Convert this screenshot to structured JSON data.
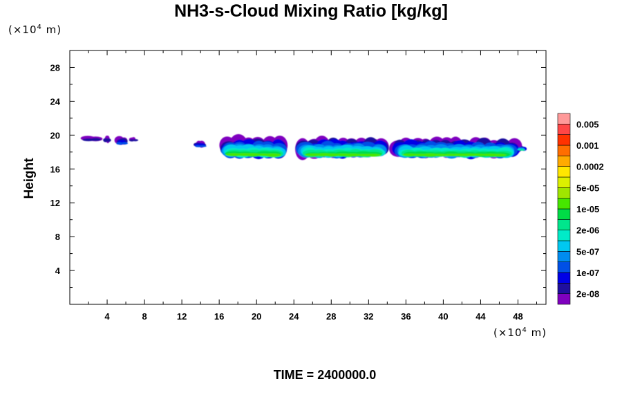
{
  "chart_data": {
    "type": "heatmap",
    "title": "NH3-s-Cloud Mixing Ratio [kg/kg]",
    "ylabel": "Height",
    "x_unit_label": "(×10",
    "x_unit_exp": "4",
    "x_unit_suffix": " m)",
    "y_unit_label": "(×10",
    "y_unit_exp": "4",
    "y_unit_suffix": " m)",
    "xlim": [
      0,
      51
    ],
    "ylim": [
      0,
      30
    ],
    "x_ticks": [
      4,
      8,
      12,
      16,
      20,
      24,
      28,
      32,
      36,
      40,
      44,
      48
    ],
    "y_ticks": [
      4,
      8,
      12,
      16,
      20,
      24,
      28
    ],
    "time_label": "TIME = 2400000.0",
    "colorbar": {
      "colors": [
        "#7f00bf",
        "#1f0f9f",
        "#0000e6",
        "#0050e6",
        "#008cf0",
        "#00c8f0",
        "#00ebc8",
        "#00e68c",
        "#00dc46",
        "#46e600",
        "#a0e600",
        "#dcf000",
        "#ffe600",
        "#ffaa00",
        "#ff6e00",
        "#ff3200",
        "#ff4646",
        "#ff9999"
      ],
      "labels": [
        "2e-08",
        "1e-07",
        "5e-07",
        "2e-06",
        "1e-05",
        "5e-05",
        "0.0002",
        "0.001",
        "0.005"
      ]
    },
    "cloud_regions": [
      {
        "x": [
          1.5,
          3.2
        ],
        "y": [
          19.3,
          19.9
        ],
        "level": "2e-08"
      },
      {
        "x": [
          3.8,
          4.3
        ],
        "y": [
          19.2,
          19.9
        ],
        "level": "2e-08"
      },
      {
        "x": [
          5.2,
          6.0
        ],
        "y": [
          18.9,
          19.8
        ],
        "level": "1e-07"
      },
      {
        "x": [
          6.6,
          7.0
        ],
        "y": [
          19.3,
          19.7
        ],
        "level": "2e-08"
      },
      {
        "x": [
          13.6,
          14.4
        ],
        "y": [
          18.6,
          19.3
        ],
        "level": "1e-07"
      },
      {
        "x": [
          16.4,
          23.0
        ],
        "y": [
          17.5,
          19.7
        ],
        "level": "1e-05"
      },
      {
        "x": [
          24.5,
          34.0
        ],
        "y": [
          17.5,
          19.6
        ],
        "level": "1e-05"
      },
      {
        "x": [
          34.6,
          48.0
        ],
        "y": [
          17.5,
          19.5
        ],
        "level": "1e-05"
      },
      {
        "x": [
          48.2,
          48.6
        ],
        "y": [
          18.2,
          18.7
        ],
        "level": "2e-06"
      }
    ]
  }
}
